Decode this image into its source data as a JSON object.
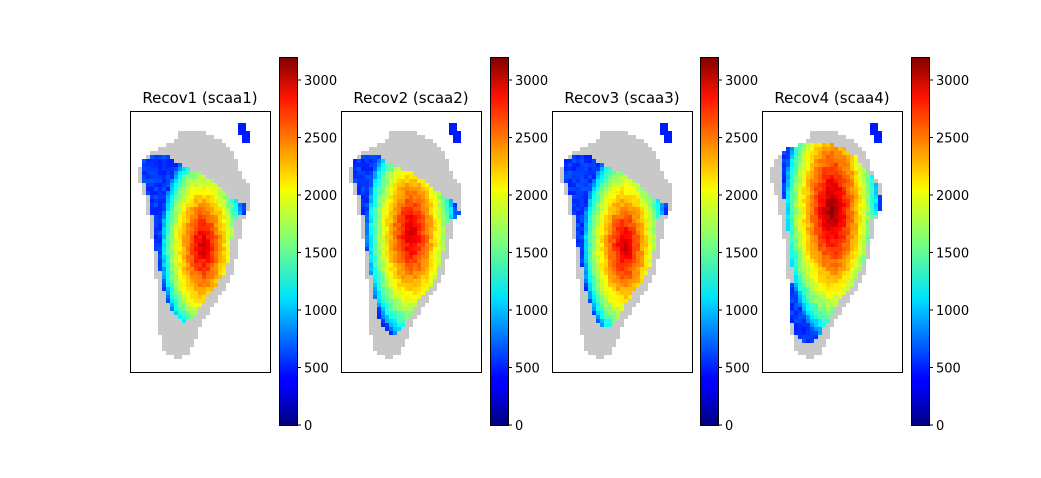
{
  "chart_data": [
    {
      "type": "heatmap",
      "title": "Recov1 (scaa1)",
      "colormap": "jet",
      "mask_color": "#c8c8c8",
      "colorbar": {
        "range": [
          0,
          3200
        ],
        "ticks": [
          "0",
          "500",
          "1000",
          "1500",
          "2000",
          "2500",
          "3000"
        ]
      },
      "xticks": [],
      "yticks": [],
      "peak_value": 3000,
      "peak_location": "center-south"
    },
    {
      "type": "heatmap",
      "title": "Recov2 (scaa2)",
      "colormap": "jet",
      "mask_color": "#c8c8c8",
      "colorbar": {
        "range": [
          0,
          3200
        ],
        "ticks": [
          "0",
          "500",
          "1000",
          "1500",
          "2000",
          "2500",
          "3000"
        ]
      },
      "xticks": [],
      "yticks": [],
      "peak_value": 3000,
      "peak_location": "center"
    },
    {
      "type": "heatmap",
      "title": "Recov3 (scaa3)",
      "colormap": "jet",
      "mask_color": "#c8c8c8",
      "colorbar": {
        "range": [
          0,
          3200
        ],
        "ticks": [
          "0",
          "500",
          "1000",
          "1500",
          "2000",
          "2500",
          "3000"
        ]
      },
      "xticks": [],
      "yticks": [],
      "peak_value": 3000,
      "peak_location": "center-south"
    },
    {
      "type": "heatmap",
      "title": "Recov4 (scaa4)",
      "colormap": "jet",
      "mask_color": "#c8c8c8",
      "colorbar": {
        "range": [
          0,
          3200
        ],
        "ticks": [
          "0",
          "500",
          "1000",
          "1500",
          "2000",
          "2500",
          "3000"
        ]
      },
      "xticks": [],
      "yticks": [],
      "peak_value": 3200,
      "peak_location": "center-north"
    }
  ]
}
